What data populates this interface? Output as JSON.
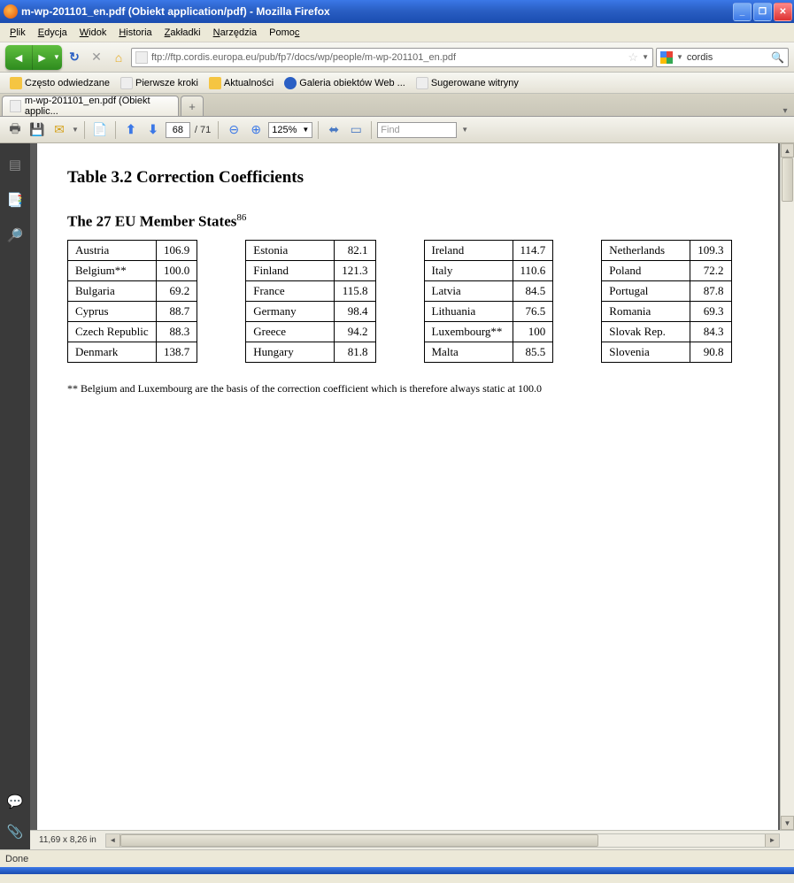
{
  "window": {
    "title": "m-wp-201101_en.pdf (Obiekt application/pdf) - Mozilla Firefox"
  },
  "menu": {
    "items": [
      "Plik",
      "Edycja",
      "Widok",
      "Historia",
      "Zakładki",
      "Narzędzia",
      "Pomoc"
    ]
  },
  "nav": {
    "url": "ftp://ftp.cordis.europa.eu/pub/fp7/docs/wp/people/m-wp-201101_en.pdf",
    "search_engine": "cordis"
  },
  "bookmarks": {
    "items": [
      "Często odwiedzane",
      "Pierwsze kroki",
      "Aktualności",
      "Galeria obiektów Web ...",
      "Sugerowane witryny"
    ]
  },
  "tab": {
    "title": "m-wp-201101_en.pdf (Obiekt applic..."
  },
  "pdf_toolbar": {
    "page_current": "68",
    "page_total": "/ 71",
    "zoom": "125%",
    "find_placeholder": "Find"
  },
  "document": {
    "title": "Table 3.2 Correction Coefficients",
    "subtitle": "The 27 EU Member States",
    "subtitle_sup": "86",
    "footnote": "** Belgium and Luxembourg are the basis of the correction coefficient which is therefore always static at 100.0",
    "tables": [
      [
        {
          "c": "Austria",
          "v": "106.9"
        },
        {
          "c": "Belgium**",
          "v": "100.0"
        },
        {
          "c": "Bulgaria",
          "v": "69.2"
        },
        {
          "c": "Cyprus",
          "v": "88.7"
        },
        {
          "c": "Czech Republic",
          "v": "88.3"
        },
        {
          "c": "Denmark",
          "v": "138.7"
        }
      ],
      [
        {
          "c": "Estonia",
          "v": "82.1"
        },
        {
          "c": "Finland",
          "v": "121.3"
        },
        {
          "c": "France",
          "v": "115.8"
        },
        {
          "c": "Germany",
          "v": "98.4"
        },
        {
          "c": "Greece",
          "v": "94.2"
        },
        {
          "c": "Hungary",
          "v": "81.8"
        }
      ],
      [
        {
          "c": "Ireland",
          "v": "114.7"
        },
        {
          "c": "Italy",
          "v": "110.6"
        },
        {
          "c": "Latvia",
          "v": "84.5"
        },
        {
          "c": "Lithuania",
          "v": "76.5"
        },
        {
          "c": "Luxembourg**",
          "v": "100"
        },
        {
          "c": "Malta",
          "v": "85.5"
        }
      ],
      [
        {
          "c": "Netherlands",
          "v": "109.3"
        },
        {
          "c": "Poland",
          "v": "72.2"
        },
        {
          "c": "Portugal",
          "v": "87.8"
        },
        {
          "c": "Romania",
          "v": "69.3"
        },
        {
          "c": "Slovak Rep.",
          "v": "84.3"
        },
        {
          "c": "Slovenia",
          "v": "90.8"
        }
      ]
    ]
  },
  "status": {
    "dimensions": "11,69 x 8,26 in",
    "done": "Done"
  }
}
